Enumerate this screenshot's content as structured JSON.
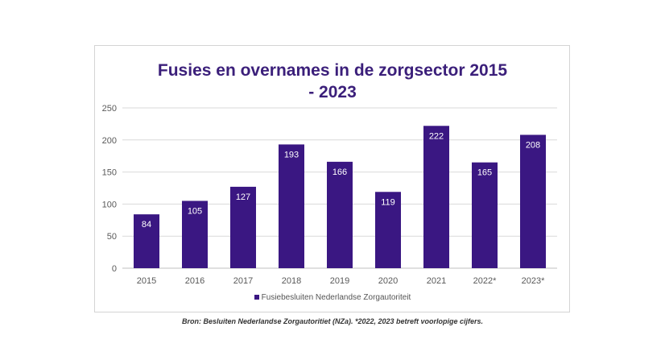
{
  "chart_data": {
    "type": "bar",
    "title": "Fusies en overnames in de zorgsector 2015 - 2023",
    "title_lines": [
      "Fusies en overnames in de zorgsector 2015",
      "- 2023"
    ],
    "categories": [
      "2015",
      "2016",
      "2017",
      "2018",
      "2019",
      "2020",
      "2021",
      "2022*",
      "2023*"
    ],
    "series": [
      {
        "name": "Fusiebesluiten Nederlandse Zorgautoriteit",
        "values": [
          84,
          105,
          127,
          193,
          166,
          119,
          222,
          165,
          208
        ]
      }
    ],
    "ylim": [
      0,
      250
    ],
    "yticks": [
      "0",
      "50",
      "100",
      "150",
      "200",
      "250"
    ],
    "grid": true,
    "legend_position": "bottom",
    "bar_color": "#3a1782",
    "label_color": "#ffffff"
  },
  "source_note": "Bron: Besluiten Nederlandse Zorgautoritiet (NZa). *2022, 2023 betreft voorlopige cijfers."
}
